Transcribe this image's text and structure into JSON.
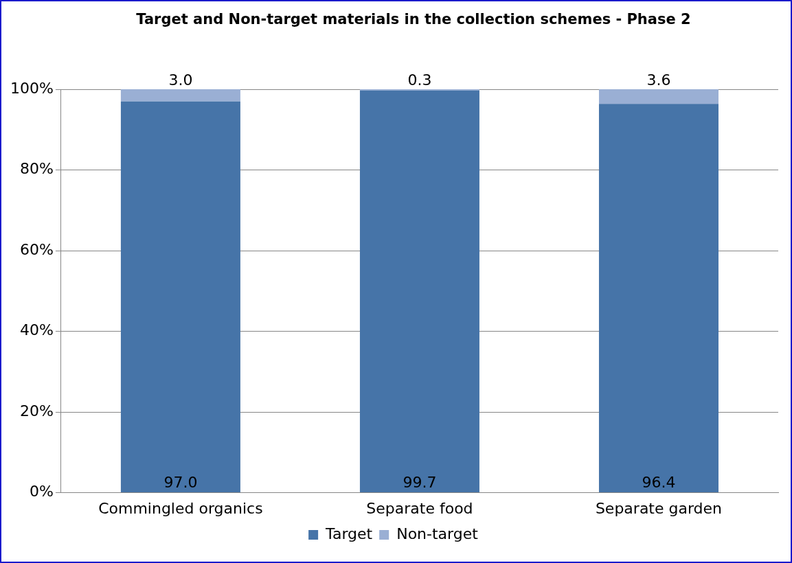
{
  "chart_data": {
    "type": "bar",
    "title": "Target and Non-target materials in the collection schemes - Phase 2",
    "categories": [
      "Commingled organics",
      "Separate food",
      "Separate garden"
    ],
    "stacked": true,
    "series": [
      {
        "name": "Target",
        "color": "#4674a8",
        "values": [
          97.0,
          99.7,
          96.4
        ],
        "value_labels": [
          "97.0",
          "99.7",
          "96.4"
        ]
      },
      {
        "name": "Non-target",
        "color": "#9aafd4",
        "values": [
          3.0,
          0.3,
          3.6
        ],
        "value_labels": [
          "3.0",
          "0.3",
          "3.6"
        ]
      }
    ],
    "ylim": [
      0,
      100
    ],
    "yticks": [
      {
        "value": 0,
        "label": "0%"
      },
      {
        "value": 20,
        "label": "20%"
      },
      {
        "value": 40,
        "label": "40%"
      },
      {
        "value": 60,
        "label": "60%"
      },
      {
        "value": 80,
        "label": "80%"
      },
      {
        "value": 100,
        "label": "100%"
      }
    ],
    "grid": "y",
    "legend": "bottom"
  }
}
